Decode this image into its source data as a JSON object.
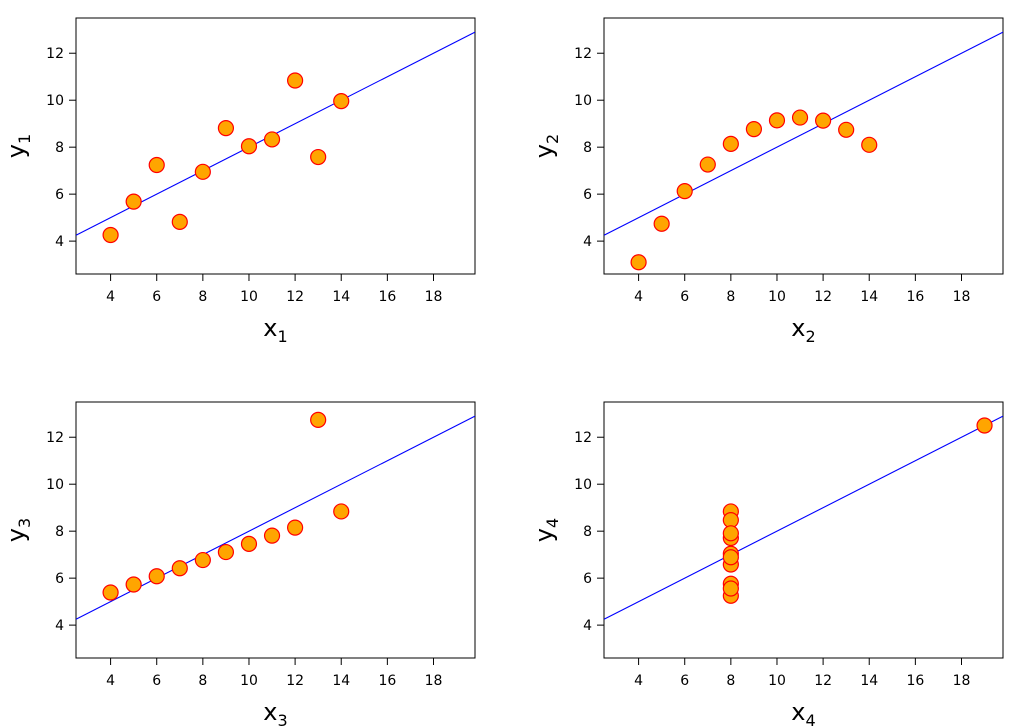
{
  "chart_data": [
    {
      "type": "scatter",
      "title": "",
      "xlabel": "x",
      "xlabel_sub": "1",
      "ylabel": "y",
      "ylabel_sub": "1",
      "xlim": [
        2.5,
        19.8
      ],
      "ylim": [
        2.6,
        13.5
      ],
      "xticks": [
        "4",
        "6",
        "8",
        "10",
        "12",
        "14",
        "16",
        "18"
      ],
      "yticks": [
        "4",
        "6",
        "8",
        "10",
        "12"
      ],
      "grid": false,
      "x": [
        10,
        8,
        13,
        9,
        11,
        14,
        6,
        4,
        12,
        7,
        5
      ],
      "y": [
        8.04,
        6.95,
        7.58,
        8.81,
        8.33,
        9.96,
        7.24,
        4.26,
        10.84,
        4.82,
        5.68
      ],
      "fit_line": {
        "intercept": 3,
        "slope": 0.5
      }
    },
    {
      "type": "scatter",
      "title": "",
      "xlabel": "x",
      "xlabel_sub": "2",
      "ylabel": "y",
      "ylabel_sub": "2",
      "xlim": [
        2.5,
        19.8
      ],
      "ylim": [
        2.6,
        13.5
      ],
      "xticks": [
        "4",
        "6",
        "8",
        "10",
        "12",
        "14",
        "16",
        "18"
      ],
      "yticks": [
        "4",
        "6",
        "8",
        "10",
        "12"
      ],
      "grid": false,
      "x": [
        10,
        8,
        13,
        9,
        11,
        14,
        6,
        4,
        12,
        7,
        5
      ],
      "y": [
        9.14,
        8.14,
        8.74,
        8.77,
        9.26,
        8.1,
        6.13,
        3.1,
        9.13,
        7.26,
        4.74
      ],
      "fit_line": {
        "intercept": 3,
        "slope": 0.5
      }
    },
    {
      "type": "scatter",
      "title": "",
      "xlabel": "x",
      "xlabel_sub": "3",
      "ylabel": "y",
      "ylabel_sub": "3",
      "xlim": [
        2.5,
        19.8
      ],
      "ylim": [
        2.6,
        13.5
      ],
      "xticks": [
        "4",
        "6",
        "8",
        "10",
        "12",
        "14",
        "16",
        "18"
      ],
      "yticks": [
        "4",
        "6",
        "8",
        "10",
        "12"
      ],
      "grid": false,
      "x": [
        10,
        8,
        13,
        9,
        11,
        14,
        6,
        4,
        12,
        7,
        5
      ],
      "y": [
        7.46,
        6.77,
        12.74,
        7.11,
        7.81,
        8.84,
        6.08,
        5.39,
        8.15,
        6.42,
        5.73
      ],
      "fit_line": {
        "intercept": 3,
        "slope": 0.5
      }
    },
    {
      "type": "scatter",
      "title": "",
      "xlabel": "x",
      "xlabel_sub": "4",
      "ylabel": "y",
      "ylabel_sub": "4",
      "xlim": [
        2.5,
        19.8
      ],
      "ylim": [
        2.6,
        13.5
      ],
      "xticks": [
        "4",
        "6",
        "8",
        "10",
        "12",
        "14",
        "16",
        "18"
      ],
      "yticks": [
        "4",
        "6",
        "8",
        "10",
        "12"
      ],
      "grid": false,
      "x": [
        8,
        8,
        8,
        8,
        8,
        8,
        8,
        19,
        8,
        8,
        8
      ],
      "y": [
        6.58,
        5.76,
        7.71,
        8.84,
        8.47,
        7.04,
        5.25,
        12.5,
        5.56,
        7.91,
        6.89
      ],
      "fit_line": {
        "intercept": 3,
        "slope": 0.5
      }
    }
  ],
  "colors": {
    "marker_fill": "#ffa500",
    "marker_edge": "#ff0000",
    "fit_line": "#0000ff",
    "axes": "#000000"
  }
}
